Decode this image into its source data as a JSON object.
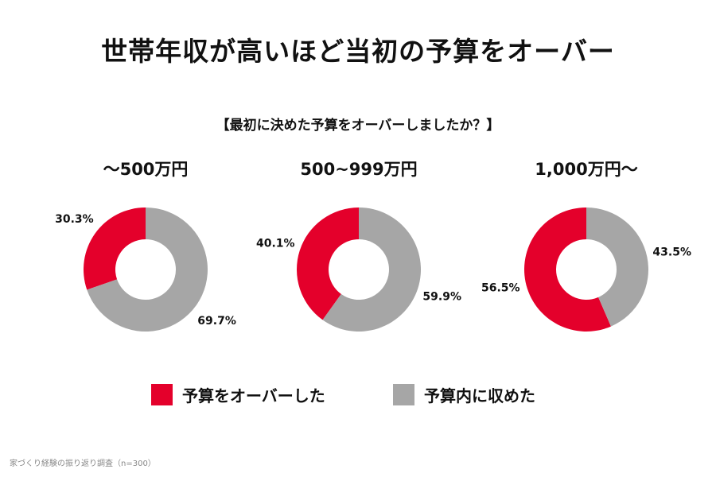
{
  "title": "世帯年収が高いほど当初の予算をオーバー",
  "subtitle": "【最初に決めた予算をオーバーしましたか？】",
  "legend": {
    "over": "予算をオーバーした",
    "within": "予算内に収めた"
  },
  "source": "家づくり経験の振り返り調査（n=300）",
  "colors": {
    "over": "#e4002b",
    "within": "#a6a6a6"
  },
  "chart_data": [
    {
      "type": "pie",
      "title": "～500万円",
      "labels": [
        "予算をオーバーした",
        "予算内に収めた"
      ],
      "values": [
        30.3,
        69.7
      ],
      "value_labels": [
        "30.3%",
        "69.7%"
      ]
    },
    {
      "type": "pie",
      "title": "500~999万円",
      "labels": [
        "予算をオーバーした",
        "予算内に収めた"
      ],
      "values": [
        40.1,
        59.9
      ],
      "value_labels": [
        "40.1%",
        "59.9%"
      ]
    },
    {
      "type": "pie",
      "title": "1,000万円～",
      "labels": [
        "予算をオーバーした",
        "予算内に収めた"
      ],
      "values": [
        56.5,
        43.5
      ],
      "value_labels": [
        "56.5%",
        "43.5%"
      ]
    }
  ]
}
